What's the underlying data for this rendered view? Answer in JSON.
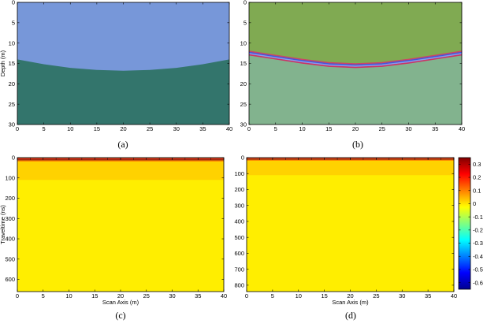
{
  "figure": {
    "captions": [
      "(a)",
      "(b)",
      "(c)",
      "(d)"
    ]
  },
  "colors": {
    "air_blue": "#7797d9",
    "ground_teal": "#33756c",
    "upper_green": "#80aa52",
    "lower_green": "#82b38e",
    "field_yellow": "#ffee00",
    "band_orange": "#ffd200"
  },
  "chart_data": [
    {
      "id": "a",
      "type": "heatmap",
      "description_kind": "layered velocity model",
      "xlabel": "",
      "ylabel": "Depth (m)",
      "xlim": [
        0,
        40
      ],
      "ylim": [
        0,
        30
      ],
      "y_reversed": true,
      "xticks": [
        0,
        5,
        10,
        15,
        20,
        25,
        30,
        35,
        40
      ],
      "yticks": [
        0,
        5,
        10,
        15,
        20,
        25,
        30
      ],
      "interface": {
        "x": [
          0,
          5,
          10,
          15,
          20,
          25,
          30,
          35,
          40
        ],
        "depth": [
          14,
          15.2,
          16.1,
          16.6,
          16.8,
          16.6,
          16.1,
          15.2,
          14
        ]
      },
      "layers": [
        "air_blue",
        "ground_teal"
      ]
    },
    {
      "id": "b",
      "type": "heatmap",
      "description_kind": "layered model with interface band",
      "xlabel": "",
      "ylabel": "",
      "xlim": [
        0,
        40
      ],
      "ylim": [
        0,
        30
      ],
      "y_reversed": true,
      "xticks": [
        0,
        5,
        10,
        15,
        20,
        25,
        30,
        35,
        40
      ],
      "yticks": [
        0,
        5,
        10,
        15,
        20,
        25,
        30
      ],
      "interface": {
        "x": [
          0,
          5,
          10,
          15,
          20,
          25,
          30,
          35,
          40
        ],
        "depth": [
          12.5,
          13.5,
          14.5,
          15.3,
          15.6,
          15.3,
          14.5,
          13.5,
          12.5
        ]
      },
      "band_colors": [
        "#cc4466",
        "#4455dd",
        "#8899ee",
        "#cc3366"
      ],
      "layers": [
        "upper_green",
        "lower_green"
      ]
    },
    {
      "id": "c",
      "type": "heatmap",
      "description_kind": "radargram",
      "xlabel": "Scan Axis (m)",
      "ylabel": "Traveltime (ns)",
      "xlim": [
        0,
        40
      ],
      "ylim": [
        0,
        660
      ],
      "y_reversed": true,
      "xticks": [
        0,
        5,
        10,
        15,
        20,
        25,
        30,
        35,
        40
      ],
      "yticks": [
        0,
        100,
        200,
        300,
        400,
        500,
        600
      ],
      "bands": [
        {
          "from": 0,
          "to": 3,
          "color": "#5a1a10"
        },
        {
          "from": 3,
          "to": 8,
          "color": "#e23020"
        },
        {
          "from": 8,
          "to": 14,
          "color": "#9a2010"
        },
        {
          "from": 14,
          "to": 20,
          "color": "#ff8a00"
        },
        {
          "from": 20,
          "to": 110,
          "color": "#ffd200"
        }
      ]
    },
    {
      "id": "d",
      "type": "heatmap",
      "description_kind": "radargram",
      "xlabel": "Scan Axis (m)",
      "ylabel": "",
      "xlim": [
        0,
        40
      ],
      "ylim": [
        0,
        840
      ],
      "y_reversed": true,
      "xticks": [
        0,
        5,
        10,
        15,
        20,
        25,
        30,
        35,
        40
      ],
      "yticks": [
        0,
        100,
        200,
        300,
        400,
        500,
        600,
        700,
        800
      ],
      "bands": [
        {
          "from": 0,
          "to": 3,
          "color": "#5a1a10"
        },
        {
          "from": 3,
          "to": 8,
          "color": "#e23020"
        },
        {
          "from": 8,
          "to": 14,
          "color": "#9a2010"
        },
        {
          "from": 14,
          "to": 20,
          "color": "#ff8a00"
        },
        {
          "from": 20,
          "to": 110,
          "color": "#ffd200"
        }
      ],
      "colorbar": {
        "range": [
          -0.65,
          0.35
        ],
        "ticks": [
          0.3,
          0.2,
          0.1,
          0,
          -0.1,
          -0.2,
          -0.3,
          -0.4,
          -0.5,
          -0.6
        ],
        "tick_labels": [
          "0.3",
          "0.2",
          "0.1",
          "0",
          "-0.1",
          "-0.2",
          "-0.3",
          "-0.4",
          "-0.5",
          "-0.6"
        ],
        "colormap": "jet"
      }
    }
  ]
}
